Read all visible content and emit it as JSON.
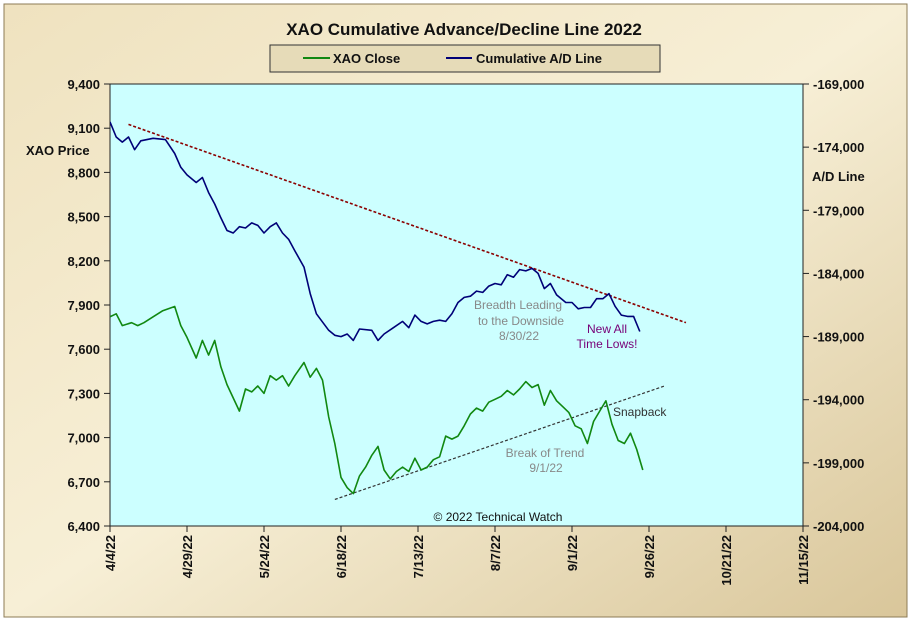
{
  "chart_data": {
    "type": "line",
    "title": "XAO Cumulative Advance/Decline Line 2022",
    "y_left_label": "XAO Price",
    "y_right_label": "A/D Line",
    "y_left_range": [
      6400,
      9400
    ],
    "y_right_range": [
      -204000,
      -169000
    ],
    "y_left_ticks": [
      "9,400",
      "9,100",
      "8,800",
      "8,500",
      "8,200",
      "7,900",
      "7,600",
      "7,300",
      "7,000",
      "6,700",
      "6,400"
    ],
    "y_right_ticks": [
      "-169,000",
      "-174,000",
      "-179,000",
      "-184,000",
      "-189,000",
      "-194,000",
      "-199,000",
      "-204,000"
    ],
    "x_range": [
      "2022-04-04",
      "2022-11-15"
    ],
    "x_ticks": [
      "4/4/22",
      "4/29/22",
      "5/24/22",
      "6/18/22",
      "7/13/22",
      "8/7/22",
      "9/1/22",
      "9/26/22",
      "10/21/22",
      "11/15/22"
    ],
    "legend_position": "top-center",
    "grid": false,
    "colors": {
      "background": "#ccffff",
      "xao": "#118811",
      "ad": "#000077",
      "resistance": "#8b0000",
      "support": "#333333",
      "purple_text": "#770077",
      "gray_text": "#888888",
      "frame": "#d8c8a0"
    },
    "series": [
      {
        "name": "XAO Close",
        "axis": "left",
        "points": [
          [
            "2022-04-04",
            7820
          ],
          [
            "2022-04-06",
            7840
          ],
          [
            "2022-04-08",
            7760
          ],
          [
            "2022-04-11",
            7780
          ],
          [
            "2022-04-13",
            7760
          ],
          [
            "2022-04-15",
            7780
          ],
          [
            "2022-04-18",
            7820
          ],
          [
            "2022-04-21",
            7860
          ],
          [
            "2022-04-25",
            7890
          ],
          [
            "2022-04-27",
            7760
          ],
          [
            "2022-04-29",
            7680
          ],
          [
            "2022-05-02",
            7540
          ],
          [
            "2022-05-04",
            7660
          ],
          [
            "2022-05-06",
            7560
          ],
          [
            "2022-05-08",
            7660
          ],
          [
            "2022-05-10",
            7480
          ],
          [
            "2022-05-12",
            7360
          ],
          [
            "2022-05-16",
            7180
          ],
          [
            "2022-05-18",
            7330
          ],
          [
            "2022-05-20",
            7310
          ],
          [
            "2022-05-22",
            7350
          ],
          [
            "2022-05-24",
            7300
          ],
          [
            "2022-05-26",
            7420
          ],
          [
            "2022-05-28",
            7390
          ],
          [
            "2022-05-30",
            7420
          ],
          [
            "2022-06-01",
            7350
          ],
          [
            "2022-06-03",
            7420
          ],
          [
            "2022-06-06",
            7510
          ],
          [
            "2022-06-08",
            7410
          ],
          [
            "2022-06-10",
            7470
          ],
          [
            "2022-06-12",
            7390
          ],
          [
            "2022-06-14",
            7140
          ],
          [
            "2022-06-16",
            6960
          ],
          [
            "2022-06-18",
            6730
          ],
          [
            "2022-06-20",
            6660
          ],
          [
            "2022-06-22",
            6620
          ],
          [
            "2022-06-24",
            6740
          ],
          [
            "2022-06-26",
            6800
          ],
          [
            "2022-06-28",
            6880
          ],
          [
            "2022-06-30",
            6940
          ],
          [
            "2022-07-02",
            6780
          ],
          [
            "2022-07-04",
            6720
          ],
          [
            "2022-07-06",
            6770
          ],
          [
            "2022-07-08",
            6800
          ],
          [
            "2022-07-10",
            6770
          ],
          [
            "2022-07-12",
            6860
          ],
          [
            "2022-07-14",
            6780
          ],
          [
            "2022-07-16",
            6800
          ],
          [
            "2022-07-18",
            6850
          ],
          [
            "2022-07-20",
            6870
          ],
          [
            "2022-07-22",
            7010
          ],
          [
            "2022-07-24",
            6990
          ],
          [
            "2022-07-26",
            7010
          ],
          [
            "2022-07-28",
            7080
          ],
          [
            "2022-07-30",
            7160
          ],
          [
            "2022-08-01",
            7200
          ],
          [
            "2022-08-03",
            7180
          ],
          [
            "2022-08-05",
            7240
          ],
          [
            "2022-08-07",
            7260
          ],
          [
            "2022-08-09",
            7280
          ],
          [
            "2022-08-11",
            7320
          ],
          [
            "2022-08-13",
            7290
          ],
          [
            "2022-08-15",
            7330
          ],
          [
            "2022-08-17",
            7380
          ],
          [
            "2022-08-19",
            7340
          ],
          [
            "2022-08-21",
            7360
          ],
          [
            "2022-08-23",
            7220
          ],
          [
            "2022-08-25",
            7320
          ],
          [
            "2022-08-27",
            7250
          ],
          [
            "2022-08-29",
            7210
          ],
          [
            "2022-08-31",
            7170
          ],
          [
            "2022-09-02",
            7080
          ],
          [
            "2022-09-04",
            7060
          ],
          [
            "2022-09-06",
            6960
          ],
          [
            "2022-09-08",
            7110
          ],
          [
            "2022-09-10",
            7180
          ],
          [
            "2022-09-12",
            7250
          ],
          [
            "2022-09-14",
            7090
          ],
          [
            "2022-09-16",
            6980
          ],
          [
            "2022-09-18",
            6960
          ],
          [
            "2022-09-20",
            7030
          ],
          [
            "2022-09-22",
            6920
          ],
          [
            "2022-09-24",
            6780
          ]
        ]
      },
      {
        "name": "Cumulative A/D Line",
        "axis": "right",
        "points": [
          [
            "2022-04-04",
            -172000
          ],
          [
            "2022-04-06",
            -173200
          ],
          [
            "2022-04-08",
            -173600
          ],
          [
            "2022-04-10",
            -173200
          ],
          [
            "2022-04-12",
            -174200
          ],
          [
            "2022-04-14",
            -173500
          ],
          [
            "2022-04-18",
            -173300
          ],
          [
            "2022-04-22",
            -173400
          ],
          [
            "2022-04-25",
            -174500
          ],
          [
            "2022-04-27",
            -175600
          ],
          [
            "2022-04-29",
            -176200
          ],
          [
            "2022-05-02",
            -176800
          ],
          [
            "2022-05-04",
            -176400
          ],
          [
            "2022-05-06",
            -177600
          ],
          [
            "2022-05-08",
            -178500
          ],
          [
            "2022-05-10",
            -179600
          ],
          [
            "2022-05-12",
            -180600
          ],
          [
            "2022-05-14",
            -180800
          ],
          [
            "2022-05-16",
            -180300
          ],
          [
            "2022-05-18",
            -180400
          ],
          [
            "2022-05-20",
            -180000
          ],
          [
            "2022-05-22",
            -180200
          ],
          [
            "2022-05-24",
            -180800
          ],
          [
            "2022-05-26",
            -180300
          ],
          [
            "2022-05-28",
            -180000
          ],
          [
            "2022-05-30",
            -180800
          ],
          [
            "2022-06-01",
            -181300
          ],
          [
            "2022-06-03",
            -182200
          ],
          [
            "2022-06-06",
            -183500
          ],
          [
            "2022-06-08",
            -185600
          ],
          [
            "2022-06-10",
            -187200
          ],
          [
            "2022-06-14",
            -188500
          ],
          [
            "2022-06-16",
            -188900
          ],
          [
            "2022-06-18",
            -189000
          ],
          [
            "2022-06-20",
            -188800
          ],
          [
            "2022-06-22",
            -189300
          ],
          [
            "2022-06-24",
            -188400
          ],
          [
            "2022-06-28",
            -188500
          ],
          [
            "2022-06-30",
            -189300
          ],
          [
            "2022-07-02",
            -188800
          ],
          [
            "2022-07-05",
            -188300
          ],
          [
            "2022-07-08",
            -187800
          ],
          [
            "2022-07-10",
            -188300
          ],
          [
            "2022-07-12",
            -187300
          ],
          [
            "2022-07-14",
            -187800
          ],
          [
            "2022-07-16",
            -188000
          ],
          [
            "2022-07-18",
            -187800
          ],
          [
            "2022-07-20",
            -187700
          ],
          [
            "2022-07-22",
            -187800
          ],
          [
            "2022-07-24",
            -187200
          ],
          [
            "2022-07-26",
            -186300
          ],
          [
            "2022-07-28",
            -185900
          ],
          [
            "2022-07-30",
            -185800
          ],
          [
            "2022-08-01",
            -185400
          ],
          [
            "2022-08-03",
            -185500
          ],
          [
            "2022-08-05",
            -185000
          ],
          [
            "2022-08-07",
            -184800
          ],
          [
            "2022-08-09",
            -184900
          ],
          [
            "2022-08-11",
            -184100
          ],
          [
            "2022-08-13",
            -184300
          ],
          [
            "2022-08-15",
            -183700
          ],
          [
            "2022-08-17",
            -183800
          ],
          [
            "2022-08-19",
            -183600
          ],
          [
            "2022-08-21",
            -184000
          ],
          [
            "2022-08-23",
            -185200
          ],
          [
            "2022-08-25",
            -184800
          ],
          [
            "2022-08-27",
            -185700
          ],
          [
            "2022-08-30",
            -186300
          ],
          [
            "2022-09-01",
            -186300
          ],
          [
            "2022-09-03",
            -186800
          ],
          [
            "2022-09-05",
            -186700
          ],
          [
            "2022-09-07",
            -186700
          ],
          [
            "2022-09-09",
            -186000
          ],
          [
            "2022-09-11",
            -186000
          ],
          [
            "2022-09-13",
            -185600
          ],
          [
            "2022-09-15",
            -186600
          ],
          [
            "2022-09-17",
            -187300
          ],
          [
            "2022-09-19",
            -187400
          ],
          [
            "2022-09-21",
            -187400
          ],
          [
            "2022-09-23",
            -188600
          ]
        ]
      }
    ],
    "trendlines": [
      {
        "kind": "resistance",
        "axis": "right",
        "from": [
          "2022-04-10",
          -172200
        ],
        "to": [
          "2022-10-08",
          -187900
        ]
      },
      {
        "kind": "support",
        "axis": "left",
        "from": [
          "2022-06-16",
          6580
        ],
        "to": [
          "2022-10-01",
          7350
        ]
      }
    ],
    "annotations": [
      {
        "lines": [
          "Breadth Leading",
          "to the Downside",
          "8/30/22"
        ],
        "color": "gray"
      },
      {
        "lines": [
          "New All",
          "Time Lows!"
        ],
        "color": "purple"
      },
      {
        "lines": [
          "Snapback"
        ],
        "color": "dark"
      },
      {
        "lines": [
          "Break of Trend",
          "9/1/22"
        ],
        "color": "gray"
      }
    ],
    "copyright": "© 2022 Technical Watch"
  }
}
